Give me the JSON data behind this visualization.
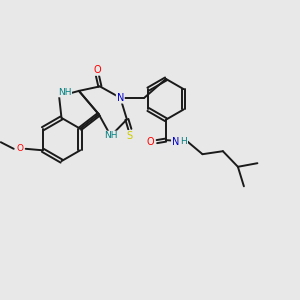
{
  "background_color": "#e8e8e8",
  "bond_color": "#1a1a1a",
  "atom_colors": {
    "N": "#0000cc",
    "NH": "#008080",
    "O": "#ff0000",
    "S": "#cccc00",
    "C": "#1a1a1a"
  },
  "figsize": [
    3.0,
    3.0
  ],
  "dpi": 100
}
